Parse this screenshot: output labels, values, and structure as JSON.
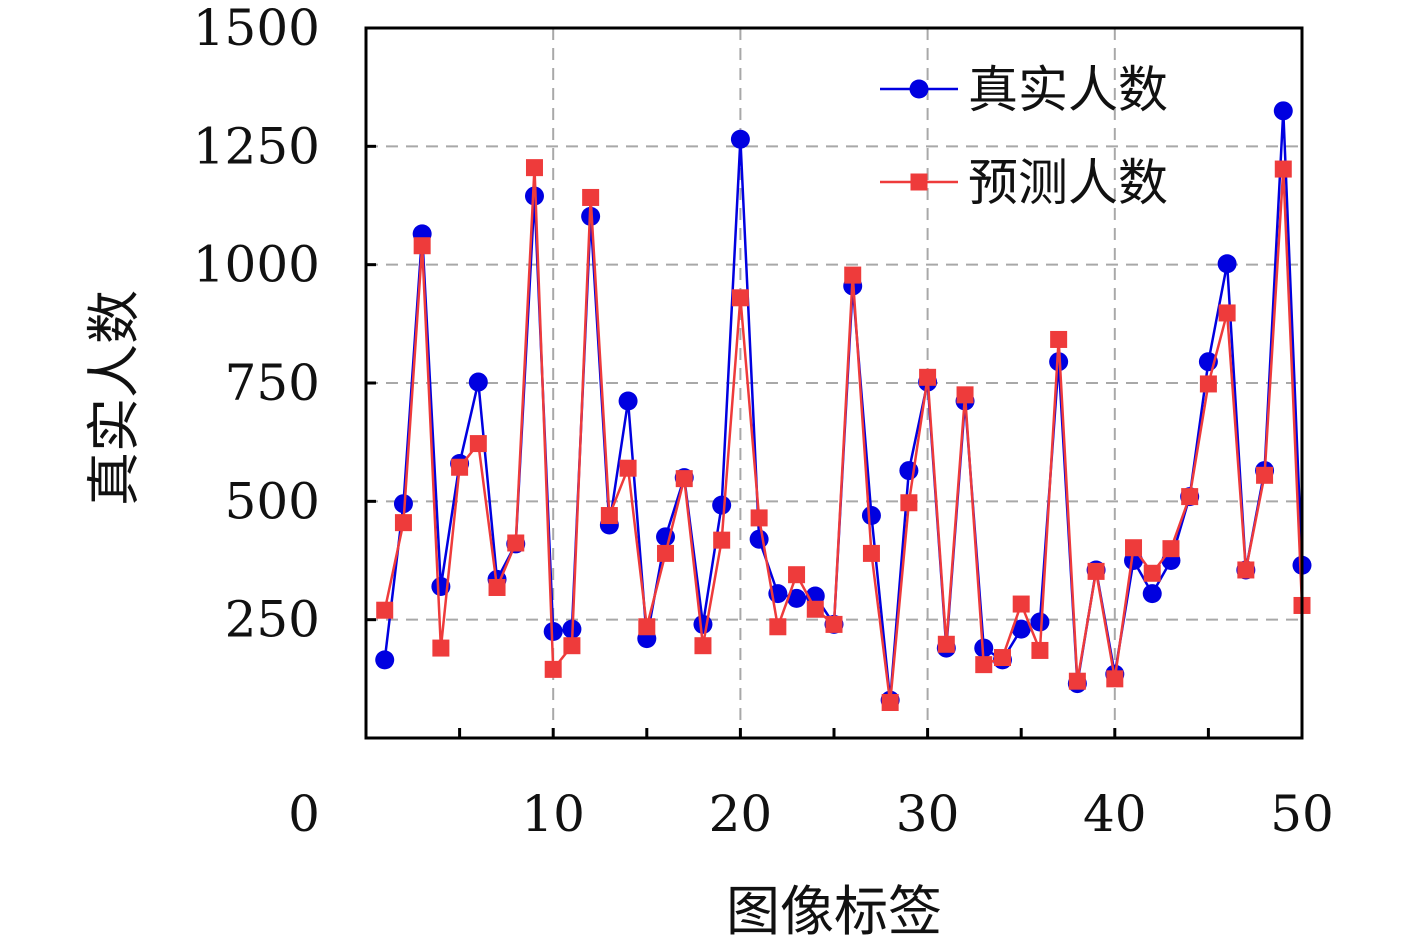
{
  "chart_data": {
    "type": "line",
    "xlabel": "图像标签",
    "ylabel": "真实人数",
    "xlim": [
      0,
      50
    ],
    "ylim": [
      0,
      1500
    ],
    "x_ticks": [
      0,
      10,
      20,
      30,
      40,
      50
    ],
    "y_ticks": [
      250,
      500,
      750,
      1000,
      1250,
      1500
    ],
    "grid": true,
    "legend_position": "top-right",
    "x": [
      1,
      2,
      3,
      4,
      5,
      6,
      7,
      8,
      9,
      10,
      11,
      12,
      13,
      14,
      15,
      16,
      17,
      18,
      19,
      20,
      21,
      22,
      23,
      24,
      25,
      26,
      27,
      28,
      29,
      30,
      31,
      32,
      33,
      34,
      35,
      36,
      37,
      38,
      39,
      40,
      41,
      42,
      43,
      44,
      45,
      46,
      47,
      48,
      49,
      50
    ],
    "series": [
      {
        "name": "真实人数",
        "color": "#0000e0",
        "marker": "circle",
        "values": [
          165,
          495,
          1065,
          320,
          580,
          752,
          335,
          410,
          1145,
          225,
          230,
          1102,
          450,
          712,
          210,
          425,
          550,
          240,
          492,
          1265,
          420,
          305,
          295,
          300,
          240,
          955,
          470,
          80,
          565,
          752,
          190,
          712,
          190,
          165,
          230,
          245,
          795,
          115,
          355,
          135,
          375,
          305,
          375,
          510,
          795,
          1002,
          355,
          565,
          1325,
          365
        ]
      },
      {
        "name": "预测人数",
        "color": "#ee3b3b",
        "marker": "square",
        "values": [
          270,
          455,
          1040,
          190,
          572,
          622,
          318,
          412,
          1205,
          145,
          195,
          1142,
          470,
          570,
          235,
          390,
          548,
          195,
          418,
          930,
          465,
          235,
          345,
          272,
          240,
          978,
          390,
          75,
          497,
          762,
          198,
          725,
          155,
          170,
          283,
          185,
          842,
          120,
          352,
          125,
          402,
          348,
          400,
          510,
          748,
          898,
          355,
          555,
          1202,
          280
        ]
      }
    ]
  }
}
